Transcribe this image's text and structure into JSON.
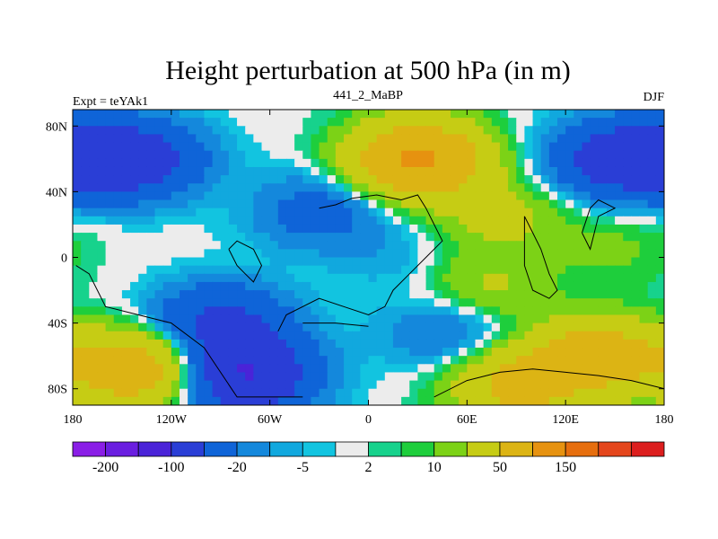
{
  "chart_data": {
    "type": "heatmap",
    "title": "Height perturbation at 500 hPa (in m)",
    "left_subtitle": "Expt = teYAk1",
    "center_subtitle": "441_2_MaBP",
    "right_subtitle": "DJF",
    "x_ticks": [
      {
        "value": -180,
        "label": "180"
      },
      {
        "value": -120,
        "label": "120W"
      },
      {
        "value": -60,
        "label": "60W"
      },
      {
        "value": 0,
        "label": "0"
      },
      {
        "value": 60,
        "label": "60E"
      },
      {
        "value": 120,
        "label": "120E"
      },
      {
        "value": 180,
        "label": "180"
      }
    ],
    "y_ticks": [
      {
        "value": 80,
        "label": "80N"
      },
      {
        "value": 40,
        "label": "40N"
      },
      {
        "value": 0,
        "label": "0"
      },
      {
        "value": -40,
        "label": "40S"
      },
      {
        "value": -80,
        "label": "80S"
      }
    ],
    "xlim": [
      -180,
      180
    ],
    "ylim": [
      -90,
      90
    ],
    "contour_levels": [
      -200,
      -150,
      -100,
      -50,
      -20,
      -10,
      -5,
      -2,
      2,
      5,
      10,
      20,
      50,
      100,
      150,
      200
    ],
    "colorbar_labels": [
      {
        "value": -200,
        "label": "-200"
      },
      {
        "value": -100,
        "label": "-100"
      },
      {
        "value": -20,
        "label": "-20"
      },
      {
        "value": -5,
        "label": "-5"
      },
      {
        "value": 2,
        "label": "2"
      },
      {
        "value": 10,
        "label": "10"
      },
      {
        "value": 50,
        "label": "50"
      },
      {
        "value": 150,
        "label": "150"
      }
    ],
    "colors": [
      "#8a1ee6",
      "#6a1ee0",
      "#4a23d8",
      "#2a3ed6",
      "#0f64d8",
      "#1488dc",
      "#11a8de",
      "#12c4e0",
      "#ececec",
      "#17d28c",
      "#1ece3c",
      "#7cd216",
      "#c6cc14",
      "#dcb414",
      "#e69210",
      "#e66e0e",
      "#e4461c",
      "#dc1e1e"
    ],
    "field_centers": [
      {
        "lon": -145,
        "lat": 60,
        "value": -85
      },
      {
        "lon": 155,
        "lat": 60,
        "value": -85
      },
      {
        "lon": 30,
        "lat": 60,
        "value": 110
      },
      {
        "lon": -30,
        "lat": 28,
        "value": -30
      },
      {
        "lon": -90,
        "lat": -40,
        "value": -60
      },
      {
        "lon": -140,
        "lat": -68,
        "value": 85
      },
      {
        "lon": -75,
        "lat": -72,
        "value": -100
      },
      {
        "lon": 90,
        "lat": -78,
        "value": 60
      },
      {
        "lon": 140,
        "lat": -60,
        "value": 75
      },
      {
        "lon": 80,
        "lat": 25,
        "value": 25
      },
      {
        "lon": 70,
        "lat": -20,
        "value": 25
      },
      {
        "lon": 150,
        "lat": 5,
        "value": 12
      },
      {
        "lon": 20,
        "lat": 0,
        "value": -8
      },
      {
        "lon": 50,
        "lat": -45,
        "value": -25
      }
    ],
    "coastline_outlines": [
      [
        [
          -178,
          -5
        ],
        [
          -170,
          -10
        ],
        [
          -165,
          -20
        ],
        [
          -160,
          -30
        ],
        [
          -140,
          -35
        ],
        [
          -120,
          -40
        ],
        [
          -100,
          -55
        ],
        [
          -80,
          -85
        ],
        [
          -60,
          -85
        ],
        [
          -40,
          -85
        ]
      ],
      [
        [
          -30,
          30
        ],
        [
          -20,
          32
        ],
        [
          -10,
          36
        ],
        [
          5,
          38
        ],
        [
          20,
          35
        ],
        [
          30,
          38
        ],
        [
          35,
          30
        ],
        [
          40,
          20
        ],
        [
          45,
          10
        ],
        [
          35,
          0
        ],
        [
          25,
          -10
        ],
        [
          15,
          -20
        ],
        [
          10,
          -30
        ],
        [
          0,
          -35
        ],
        [
          -15,
          -30
        ],
        [
          -30,
          -25
        ],
        [
          -50,
          -35
        ],
        [
          -55,
          -45
        ]
      ],
      [
        [
          -40,
          -40
        ],
        [
          -20,
          -40
        ],
        [
          0,
          -42
        ]
      ],
      [
        [
          -85,
          5
        ],
        [
          -80,
          -5
        ],
        [
          -75,
          -10
        ],
        [
          -70,
          -15
        ],
        [
          -65,
          -5
        ],
        [
          -70,
          5
        ],
        [
          -80,
          10
        ],
        [
          -85,
          5
        ]
      ],
      [
        [
          95,
          25
        ],
        [
          100,
          15
        ],
        [
          105,
          5
        ],
        [
          110,
          -10
        ],
        [
          115,
          -20
        ],
        [
          110,
          -25
        ],
        [
          100,
          -20
        ],
        [
          95,
          -5
        ],
        [
          95,
          25
        ]
      ],
      [
        [
          130,
          15
        ],
        [
          135,
          5
        ],
        [
          140,
          25
        ],
        [
          150,
          30
        ],
        [
          140,
          35
        ],
        [
          135,
          30
        ],
        [
          130,
          15
        ]
      ],
      [
        [
          40,
          -85
        ],
        [
          60,
          -75
        ],
        [
          80,
          -70
        ],
        [
          100,
          -68
        ],
        [
          120,
          -70
        ],
        [
          140,
          -72
        ],
        [
          160,
          -75
        ],
        [
          180,
          -80
        ]
      ]
    ]
  }
}
